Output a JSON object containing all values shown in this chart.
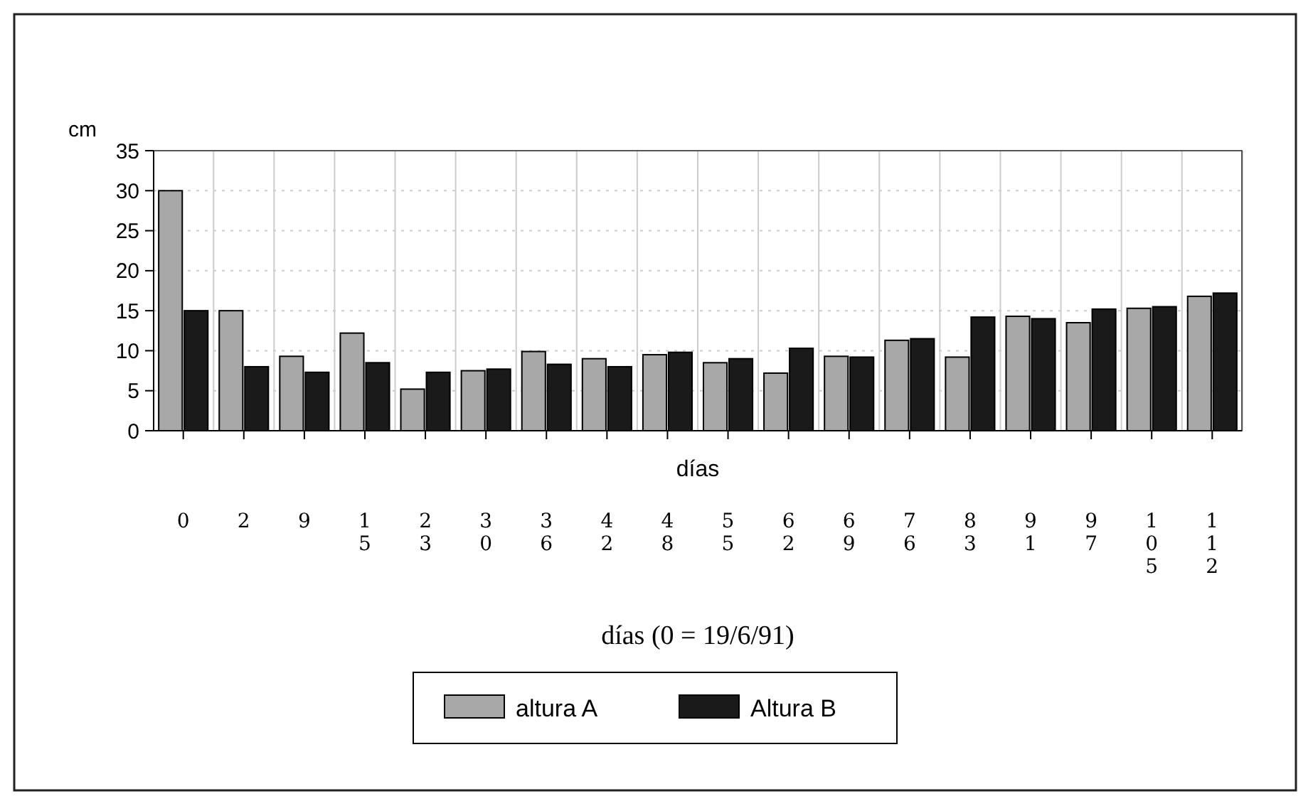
{
  "chart_data": {
    "type": "bar",
    "ylabel": "cm",
    "xlabel": "días",
    "categories": [
      "0",
      "2",
      "9",
      "15",
      "23",
      "30",
      "36",
      "42",
      "48",
      "55",
      "62",
      "69",
      "76",
      "83",
      "91",
      "97",
      "105",
      "112"
    ],
    "series": [
      {
        "name": "altura A",
        "color": "#a8a8a8",
        "values": [
          30,
          15,
          9.3,
          12.2,
          5.2,
          7.5,
          9.9,
          9,
          9.5,
          8.5,
          7.2,
          9.3,
          11.3,
          9.2,
          14.3,
          13.5,
          15.3,
          16.8
        ]
      },
      {
        "name": "Altura B",
        "color": "#1a1a1a",
        "values": [
          15,
          8,
          7.3,
          8.5,
          7.3,
          7.7,
          8.3,
          8,
          9.8,
          9,
          10.3,
          9.2,
          11.5,
          14.2,
          14,
          15.2,
          15.5,
          17.2
        ]
      }
    ],
    "ylim": [
      0,
      35
    ],
    "yticks": [
      0,
      5,
      10,
      15,
      20,
      25,
      30,
      35
    ],
    "grid": true,
    "legend": "bottom",
    "annotations": [
      "días (0 = 19/6/91)"
    ]
  }
}
